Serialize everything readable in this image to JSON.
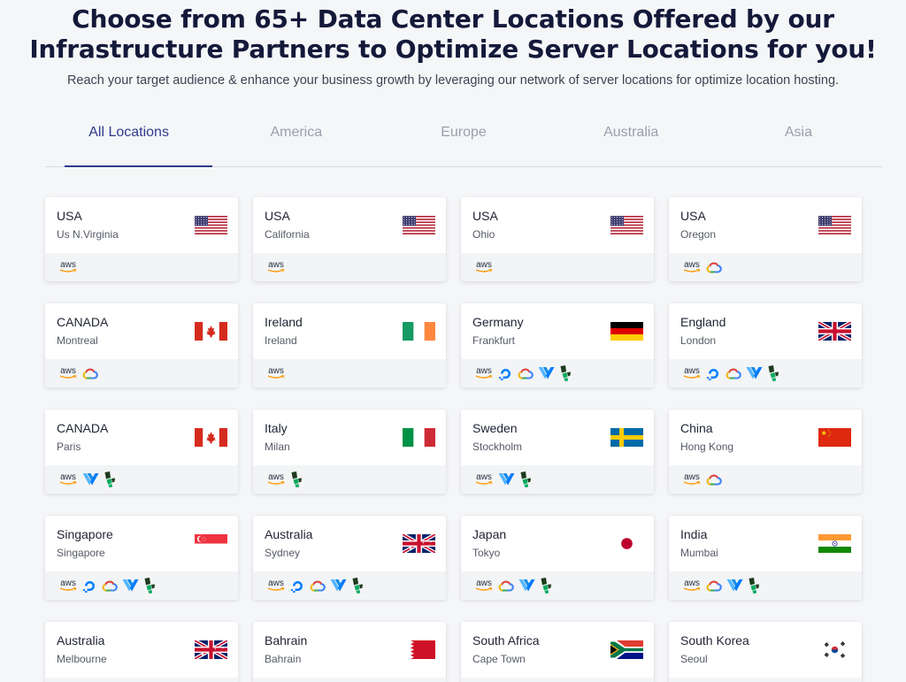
{
  "header": {
    "title_line1": "Choose from 65+ Data Center Locations Offered by our",
    "title_line2": "Infrastructure Partners to Optimize Server Locations for you!",
    "subtitle": "Reach your target audience & enhance your business growth by leveraging our network of server locations for optimize location hosting."
  },
  "tabs": [
    {
      "label": "All Locations",
      "active": true
    },
    {
      "label": "America",
      "active": false
    },
    {
      "label": "Europe",
      "active": false
    },
    {
      "label": "Australia",
      "active": false
    },
    {
      "label": "Asia",
      "active": false
    }
  ],
  "provider_labels": {
    "aws": "aws"
  },
  "locations": [
    {
      "country": "USA",
      "city": "Us N.Virginia",
      "flag": "us",
      "providers": [
        "aws"
      ]
    },
    {
      "country": "USA",
      "city": "California",
      "flag": "us",
      "providers": [
        "aws"
      ]
    },
    {
      "country": "USA",
      "city": "Ohio",
      "flag": "us",
      "providers": [
        "aws"
      ]
    },
    {
      "country": "USA",
      "city": "Oregon",
      "flag": "us",
      "providers": [
        "aws",
        "gcp"
      ]
    },
    {
      "country": "CANADA",
      "city": "Montreal",
      "flag": "ca",
      "providers": [
        "aws",
        "gcp"
      ]
    },
    {
      "country": "Ireland",
      "city": "Ireland",
      "flag": "ie",
      "providers": [
        "aws"
      ]
    },
    {
      "country": "Germany",
      "city": "Frankfurt",
      "flag": "de",
      "providers": [
        "aws",
        "digitalocean",
        "gcp",
        "vultr",
        "linode"
      ]
    },
    {
      "country": "England",
      "city": "London",
      "flag": "gb",
      "providers": [
        "aws",
        "digitalocean",
        "gcp",
        "vultr",
        "linode"
      ]
    },
    {
      "country": "CANADA",
      "city": "Paris",
      "flag": "ca",
      "providers": [
        "aws",
        "vultr",
        "linode"
      ]
    },
    {
      "country": "Italy",
      "city": "Milan",
      "flag": "it",
      "providers": [
        "aws",
        "linode"
      ]
    },
    {
      "country": "Sweden",
      "city": "Stockholm",
      "flag": "se",
      "providers": [
        "aws",
        "vultr",
        "linode"
      ]
    },
    {
      "country": "China",
      "city": "Hong Kong",
      "flag": "cn",
      "providers": [
        "aws",
        "gcp"
      ]
    },
    {
      "country": "Singapore",
      "city": "Singapore",
      "flag": "sg",
      "providers": [
        "aws",
        "digitalocean",
        "gcp",
        "vultr",
        "linode"
      ]
    },
    {
      "country": "Australia",
      "city": "Sydney",
      "flag": "au",
      "providers": [
        "aws",
        "digitalocean",
        "gcp",
        "vultr",
        "linode"
      ]
    },
    {
      "country": "Japan",
      "city": "Tokyo",
      "flag": "jp",
      "providers": [
        "aws",
        "gcp",
        "vultr",
        "linode"
      ]
    },
    {
      "country": "India",
      "city": "Mumbai",
      "flag": "in",
      "providers": [
        "aws",
        "gcp",
        "vultr",
        "linode"
      ]
    },
    {
      "country": "Australia",
      "city": "Melbourne",
      "flag": "au",
      "providers": []
    },
    {
      "country": "Bahrain",
      "city": "Bahrain",
      "flag": "bh",
      "providers": []
    },
    {
      "country": "South Africa",
      "city": "Cape Town",
      "flag": "za",
      "providers": []
    },
    {
      "country": "South Korea",
      "city": "Seoul",
      "flag": "kr",
      "providers": []
    }
  ],
  "colors": {
    "accent": "#2e3a8c",
    "title": "#14193a",
    "background": "#f5f6f8",
    "card": "#ffffff",
    "card_footer": "#f3f4f6"
  }
}
